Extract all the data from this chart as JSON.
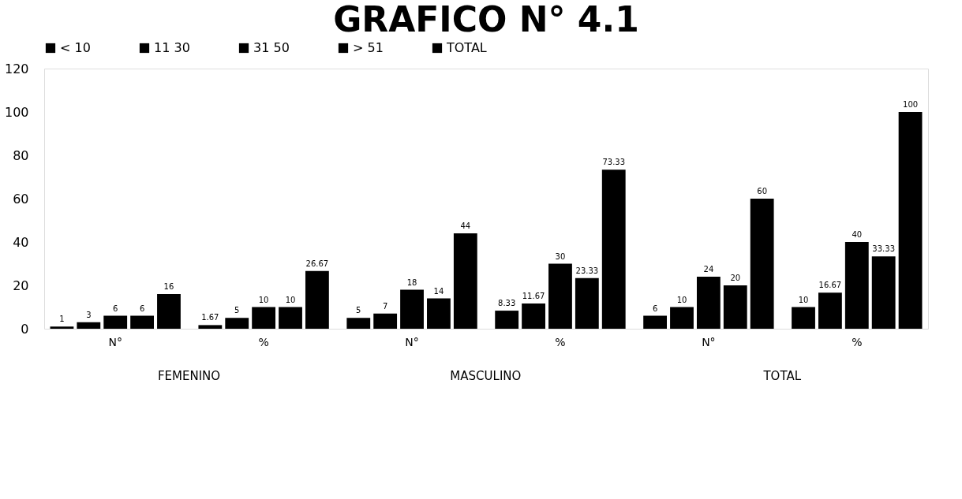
{
  "chart_data": {
    "type": "bar",
    "title": "GRAFICO N° 4.1",
    "categories": [
      "N°",
      "%",
      "N°",
      "%",
      "N°",
      "%"
    ],
    "series": [
      {
        "name": "< 10",
        "color": "#000000",
        "values": [
          1,
          1.67,
          5,
          8.33,
          6,
          10
        ]
      },
      {
        "name": "11 30",
        "color": "#000000",
        "values": [
          3,
          5,
          7,
          11.67,
          10,
          16.67
        ]
      },
      {
        "name": "31 50",
        "color": "#000000",
        "values": [
          6,
          10,
          18,
          30,
          24,
          40
        ]
      },
      {
        "name": "> 51",
        "color": "#000000",
        "values": [
          6,
          10,
          14,
          23.33,
          20,
          33.33
        ]
      },
      {
        "name": "TOTAL",
        "color": "#000000",
        "values": [
          16,
          26.67,
          44,
          73.33,
          60,
          100
        ]
      }
    ],
    "ylim": [
      0,
      120
    ],
    "yticks": [
      0,
      20,
      40,
      60,
      80,
      100,
      120
    ],
    "grid": false,
    "legend": "top",
    "data_labels": true,
    "annotations": [
      "FEMENINO",
      "MASCULINO",
      "TOTAL"
    ]
  }
}
